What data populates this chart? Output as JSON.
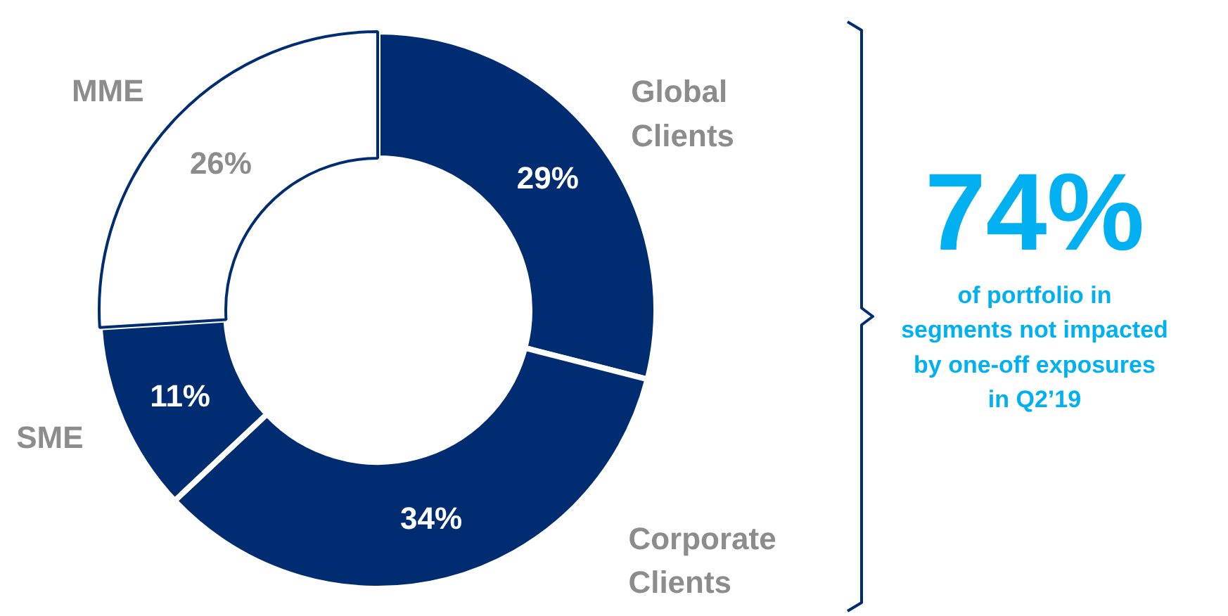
{
  "chart_data": {
    "type": "donut",
    "categories": [
      "Global Clients",
      "Corporate Clients",
      "SME",
      "MME"
    ],
    "values": [
      29,
      34,
      11,
      26
    ],
    "colors": [
      "#002d72",
      "#002d72",
      "#002d72",
      "#ffffff"
    ],
    "value_labels": [
      "29%",
      "34%",
      "11%",
      "26%"
    ],
    "annotations": [
      "74%",
      "of portfolio in segments not impacted by one-off exposures in Q2’19"
    ]
  }
}
